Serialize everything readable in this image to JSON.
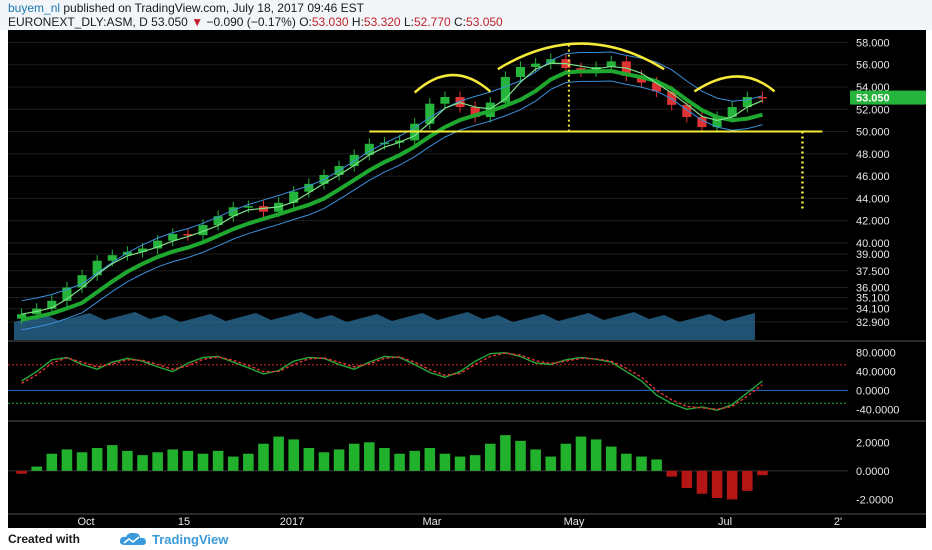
{
  "header": {
    "author": "buyem_nl",
    "published_text": "published on TradingView.com, July 18, 2017 09:46 EST",
    "symbol": "EURONEXT_DLY:ASM, D",
    "last": "53.050",
    "change": "−0.090 (−0.17%)",
    "o_label": "O:",
    "o": "53.030",
    "h_label": "H:",
    "h": "53.320",
    "l_label": "L:",
    "l": "52.770",
    "c_label": "C:",
    "c": "53.050"
  },
  "footer": {
    "created_label": "Created with",
    "brand": "TradingView",
    "brand_icon": "tradingview-cloud-icon"
  },
  "colors": {
    "background": "#000000",
    "up_candle": "#26b53c",
    "down_candle": "#e03434",
    "ema_fast": "#1fa82f",
    "band": "#3a8fd8",
    "volume": "#2b6f9a",
    "pattern": "#f5e93a",
    "stoch_k": "#27a83a",
    "stoch_d": "#e03434",
    "macd_pos": "#22b12c",
    "macd_neg": "#b41616",
    "price_badge": "#26b53c"
  },
  "chart_data": [
    {
      "type": "candlestick",
      "panel": "price",
      "x_ticks": [
        "Oct",
        "15",
        "2017",
        "Mar",
        "May",
        "Jul",
        "2'"
      ],
      "y_ticks": [
        "58.000",
        "56.000",
        "54.000",
        "52.000",
        "50.000",
        "48.000",
        "46.000",
        "44.000",
        "42.000",
        "40.000",
        "39.000",
        "37.500",
        "36.000",
        "35.100",
        "34.100",
        "32.900"
      ],
      "last_price_label": "53.050",
      "close_approx": [
        33.6,
        34.1,
        34.8,
        36.0,
        37.1,
        38.4,
        38.9,
        39.2,
        39.5,
        40.2,
        40.8,
        40.7,
        41.6,
        42.4,
        43.2,
        43.3,
        42.8,
        43.6,
        44.6,
        45.3,
        46.1,
        46.9,
        47.9,
        48.9,
        49.0,
        49.2,
        50.7,
        52.5,
        53.1,
        52.2,
        51.3,
        52.6,
        54.9,
        55.8,
        56.1,
        56.5,
        55.7,
        55.4,
        55.8,
        56.3,
        55.0,
        54.4,
        53.6,
        52.4,
        51.3,
        50.4,
        51.3,
        52.2,
        53.1,
        53.05
      ],
      "resistance_neckline": 50.0,
      "ema": "fast and slow moving averages with blue envelope bands",
      "volume_panel": "blue volume area at bottom of price panel",
      "annotations": "head and shoulders pattern arcs with neckline near 50 and dotted target projection down to about 43"
    },
    {
      "type": "line",
      "panel": "stochastic",
      "y_ticks": [
        "80.0000",
        "40.0000",
        "0.0000",
        "-40.0000"
      ],
      "k_approx": [
        20,
        40,
        65,
        70,
        55,
        45,
        60,
        68,
        62,
        50,
        40,
        58,
        70,
        72,
        60,
        48,
        35,
        42,
        62,
        70,
        68,
        55,
        45,
        60,
        72,
        70,
        55,
        38,
        28,
        40,
        62,
        78,
        80,
        72,
        58,
        55,
        65,
        70,
        66,
        60,
        40,
        20,
        -10,
        -28,
        -40,
        -35,
        -42,
        -30,
        -5,
        20
      ],
      "d_approx": [
        15,
        33,
        58,
        69,
        60,
        50,
        56,
        65,
        64,
        55,
        45,
        52,
        66,
        71,
        64,
        53,
        40,
        40,
        55,
        67,
        69,
        60,
        50,
        56,
        68,
        71,
        60,
        44,
        32,
        36,
        55,
        72,
        79,
        75,
        63,
        57,
        62,
        68,
        67,
        62,
        47,
        28,
        0,
        -20,
        -34,
        -37,
        -40,
        -34,
        -12,
        12
      ]
    },
    {
      "type": "bar",
      "panel": "macd-histogram",
      "y_ticks": [
        "2.0000",
        "0.0000",
        "-2.0000"
      ],
      "values_approx": [
        -0.2,
        0.3,
        1.2,
        1.5,
        1.3,
        1.6,
        1.8,
        1.4,
        1.1,
        1.3,
        1.5,
        1.4,
        1.2,
        1.4,
        1.0,
        1.2,
        1.9,
        2.4,
        2.2,
        1.6,
        1.3,
        1.5,
        1.9,
        2.0,
        1.6,
        1.2,
        1.4,
        1.6,
        1.2,
        1.0,
        1.1,
        1.9,
        2.5,
        2.1,
        1.5,
        1.0,
        1.9,
        2.4,
        2.2,
        1.7,
        1.2,
        1.0,
        0.8,
        -0.4,
        -1.2,
        -1.6,
        -1.9,
        -2.0,
        -1.4,
        -0.3
      ]
    }
  ]
}
